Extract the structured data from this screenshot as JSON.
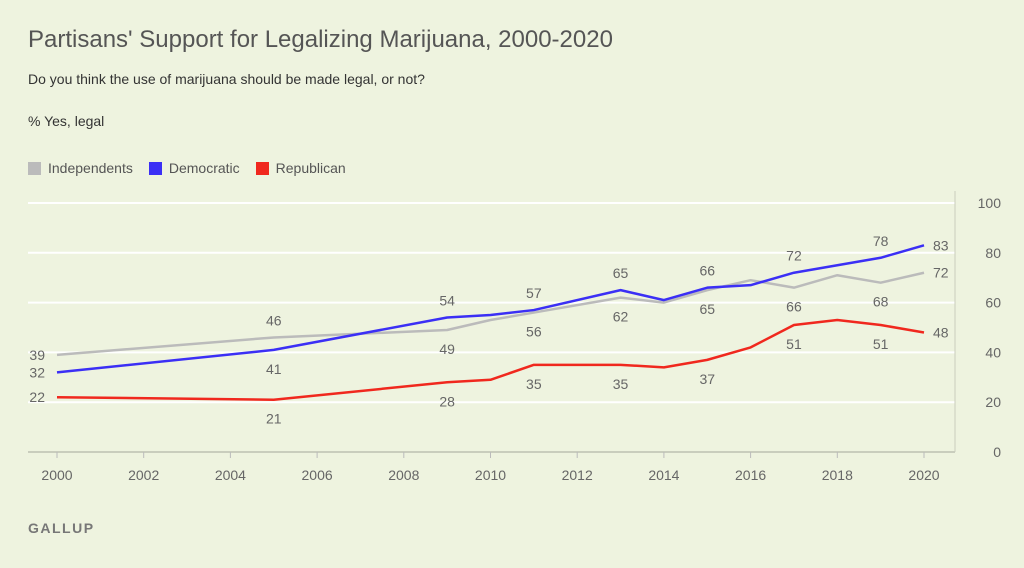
{
  "title": "Partisans' Support for Legalizing Marijuana, 2000-2020",
  "subtitle": "Do you think the use of marijuana should be made legal, or not?",
  "unit_label": "% Yes, legal",
  "brand": "GALLUP",
  "chart_data": {
    "type": "line",
    "title": "Partisans' Support for Legalizing Marijuana, 2000-2020",
    "xlabel": "",
    "ylabel": "% Yes, legal",
    "xlim": [
      2000,
      2020
    ],
    "ylim": [
      0,
      100
    ],
    "x_ticks": [
      "2000",
      "2002",
      "2004",
      "2006",
      "2008",
      "2010",
      "2012",
      "2014",
      "2016",
      "2018",
      "2020"
    ],
    "y_ticks": [
      "0",
      "20",
      "40",
      "60",
      "80",
      "100"
    ],
    "grid": "horizontal",
    "legend_placement": "top-left",
    "x": [
      2000,
      2005,
      2009,
      2010,
      2011,
      2013,
      2014,
      2015,
      2016,
      2017,
      2018,
      2019,
      2020
    ],
    "series": [
      {
        "name": "Independents",
        "color": "#bbbbbb",
        "values": [
          39,
          46,
          49,
          53,
          56,
          62,
          60,
          65,
          69,
          66,
          71,
          68,
          72
        ],
        "data_labels": [
          {
            "x": 2000,
            "text": "39",
            "pos": "left"
          },
          {
            "x": 2005,
            "text": "46",
            "pos": "above"
          },
          {
            "x": 2009,
            "text": "49",
            "pos": "below"
          },
          {
            "x": 2011,
            "text": "56",
            "pos": "below"
          },
          {
            "x": 2013,
            "text": "62",
            "pos": "below"
          },
          {
            "x": 2015,
            "text": "65",
            "pos": "below"
          },
          {
            "x": 2017,
            "text": "66",
            "pos": "below"
          },
          {
            "x": 2019,
            "text": "68",
            "pos": "below"
          },
          {
            "x": 2020,
            "text": "72",
            "pos": "right"
          }
        ]
      },
      {
        "name": "Democratic",
        "color": "#3b2ff5",
        "values": [
          32,
          41,
          54,
          55,
          57,
          65,
          61,
          66,
          67,
          72,
          75,
          78,
          83
        ],
        "data_labels": [
          {
            "x": 2000,
            "text": "32",
            "pos": "left"
          },
          {
            "x": 2005,
            "text": "41",
            "pos": "below"
          },
          {
            "x": 2009,
            "text": "54",
            "pos": "above"
          },
          {
            "x": 2011,
            "text": "57",
            "pos": "above"
          },
          {
            "x": 2013,
            "text": "65",
            "pos": "above"
          },
          {
            "x": 2015,
            "text": "66",
            "pos": "above"
          },
          {
            "x": 2017,
            "text": "72",
            "pos": "above"
          },
          {
            "x": 2019,
            "text": "78",
            "pos": "above"
          },
          {
            "x": 2020,
            "text": "83",
            "pos": "right"
          }
        ]
      },
      {
        "name": "Republican",
        "color": "#f0281e",
        "values": [
          22,
          21,
          28,
          29,
          35,
          35,
          34,
          37,
          42,
          51,
          53,
          51,
          48
        ],
        "data_labels": [
          {
            "x": 2000,
            "text": "22",
            "pos": "left"
          },
          {
            "x": 2005,
            "text": "21",
            "pos": "below"
          },
          {
            "x": 2009,
            "text": "28",
            "pos": "below"
          },
          {
            "x": 2011,
            "text": "35",
            "pos": "below"
          },
          {
            "x": 2013,
            "text": "35",
            "pos": "below"
          },
          {
            "x": 2015,
            "text": "37",
            "pos": "below"
          },
          {
            "x": 2017,
            "text": "51",
            "pos": "below"
          },
          {
            "x": 2019,
            "text": "51",
            "pos": "below"
          },
          {
            "x": 2020,
            "text": "48",
            "pos": "right"
          }
        ]
      }
    ]
  }
}
